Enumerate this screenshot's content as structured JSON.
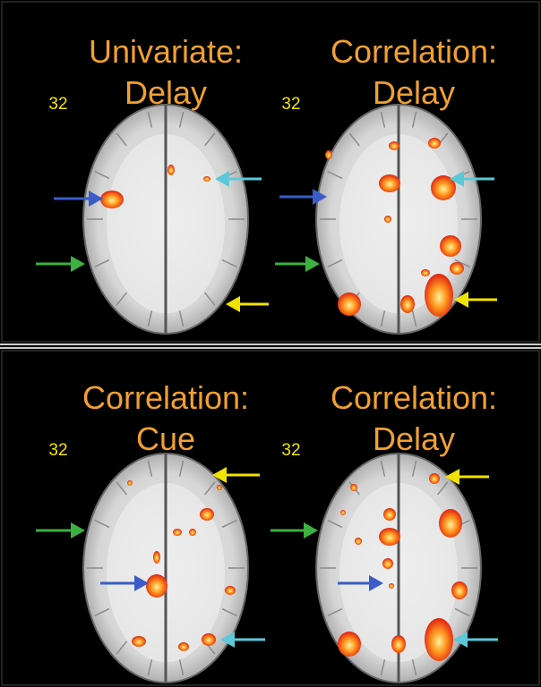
{
  "panels": [
    {
      "title": [
        "Univariate:",
        "Delay"
      ],
      "slice": "32"
    },
    {
      "title": [
        "Correlation:",
        "Delay"
      ],
      "slice": "32"
    },
    {
      "title": [
        "Correlation:",
        "Cue"
      ],
      "slice": "32"
    },
    {
      "title": [
        "Correlation:",
        "Delay"
      ],
      "slice": "32"
    }
  ]
}
